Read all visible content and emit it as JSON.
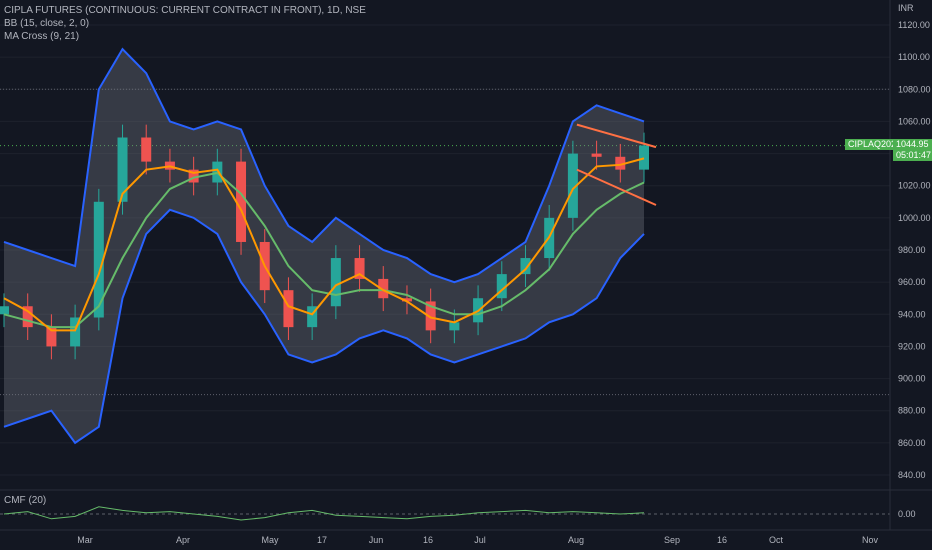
{
  "header": {
    "title": "CIPLA FUTURES (CONTINUOUS: CURRENT CONTRACT IN FRONT), 1D, NSE",
    "bb_legend": "BB (15, close, 2, 0)",
    "ma_legend": "MA Cross (9, 21)",
    "cmf_legend": "CMF (20)"
  },
  "price_axis": {
    "currency": "INR",
    "labels": [
      "1120.00",
      "1100.00",
      "1080.00",
      "1060.00",
      "1040.00",
      "1020.00",
      "1000.00",
      "980.00",
      "960.00",
      "940.00",
      "920.00",
      "900.00",
      "880.00",
      "860.00",
      "840.00"
    ]
  },
  "cmf_axis": {
    "label": "0.00"
  },
  "time_axis": {
    "labels": [
      "Mar",
      "Apr",
      "May",
      "17",
      "Jun",
      "16",
      "Jul",
      "Aug",
      "Sep",
      "16",
      "Oct",
      "Nov"
    ]
  },
  "badges": {
    "symbol": "CIPLAQ2022",
    "last_price": "1044.95",
    "countdown": "05:01:47"
  },
  "colors": {
    "background": "#131722",
    "bb_band": "#2962ff",
    "bb_fill": "#787b86",
    "up_candle": "#26a69a",
    "down_candle": "#ef5350",
    "ma_fast": "#ff9800",
    "ma_slow": "#66bb6a",
    "trendline": "#ff7043",
    "badge_green": "#4caf50"
  },
  "chart_data": {
    "type": "candlestick",
    "x": [
      "Feb-14",
      "Feb-21",
      "Feb-28",
      "Mar-07",
      "Mar-14",
      "Mar-21",
      "Mar-28",
      "Apr-04",
      "Apr-11",
      "Apr-18",
      "Apr-25",
      "May-02",
      "May-09",
      "May-16",
      "May-23",
      "May-30",
      "Jun-06",
      "Jun-13",
      "Jun-20",
      "Jun-27",
      "Jul-04",
      "Jul-11",
      "Jul-18",
      "Jul-25",
      "Aug-01",
      "Aug-08",
      "Aug-15",
      "Aug-22"
    ],
    "close": [
      945,
      932,
      920,
      938,
      1010,
      1050,
      1035,
      1030,
      1022,
      1035,
      985,
      955,
      932,
      945,
      975,
      962,
      950,
      948,
      930,
      935,
      950,
      965,
      975,
      1000,
      1040,
      1038,
      1030,
      1045
    ],
    "ma_fast": [
      950,
      942,
      930,
      930,
      965,
      1015,
      1030,
      1032,
      1028,
      1030,
      1005,
      970,
      945,
      940,
      958,
      965,
      955,
      948,
      938,
      935,
      942,
      955,
      968,
      988,
      1018,
      1032,
      1033,
      1037
    ],
    "ma_slow": [
      940,
      936,
      932,
      932,
      945,
      975,
      1000,
      1018,
      1025,
      1028,
      1015,
      995,
      970,
      955,
      952,
      955,
      955,
      952,
      945,
      940,
      940,
      945,
      955,
      968,
      990,
      1005,
      1015,
      1022
    ],
    "bb_upper": [
      985,
      980,
      975,
      970,
      1080,
      1105,
      1090,
      1060,
      1055,
      1060,
      1055,
      1020,
      995,
      985,
      1000,
      990,
      980,
      975,
      965,
      960,
      965,
      975,
      985,
      1020,
      1060,
      1070,
      1065,
      1060
    ],
    "bb_lower": [
      870,
      875,
      880,
      860,
      870,
      950,
      990,
      1005,
      1000,
      990,
      960,
      940,
      915,
      910,
      915,
      925,
      930,
      925,
      915,
      910,
      915,
      920,
      925,
      935,
      940,
      950,
      975,
      990
    ],
    "cmf": [
      0.0,
      0.02,
      -0.04,
      -0.02,
      0.06,
      0.03,
      0.01,
      0.02,
      0.0,
      -0.02,
      -0.05,
      -0.03,
      0.01,
      0.03,
      -0.01,
      -0.02,
      -0.03,
      -0.04,
      -0.02,
      -0.01,
      0.01,
      0.02,
      0.03,
      0.01,
      0.02,
      0.01,
      0.0,
      0.01
    ],
    "hlines": [
      1080,
      890
    ],
    "ylim": [
      830,
      1125
    ],
    "ylabel": "INR",
    "last_price": 1044.95,
    "trend_channel": [
      [
        1058,
        1044
      ],
      [
        1030,
        1018
      ],
      [
        1020,
        1008
      ]
    ]
  }
}
